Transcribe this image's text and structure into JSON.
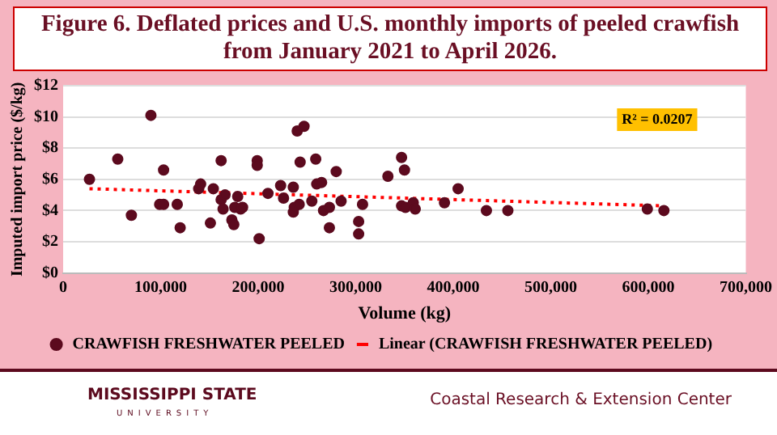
{
  "chart_data": {
    "type": "scatter",
    "title": "Figure 6. Deflated prices and U.S. monthly imports of peeled crawfish from January 2021 to April 2026.",
    "xlabel": "Volume (kg)",
    "ylabel": "Imputed import price ($/kg)",
    "xlim": [
      0,
      700000
    ],
    "ylim": [
      0,
      12
    ],
    "xticks": [
      {
        "value": 0,
        "label": "0"
      },
      {
        "value": 100000,
        "label": "100,000"
      },
      {
        "value": 200000,
        "label": "200,000"
      },
      {
        "value": 300000,
        "label": "300,000"
      },
      {
        "value": 400000,
        "label": "400,000"
      },
      {
        "value": 500000,
        "label": "500,000"
      },
      {
        "value": 600000,
        "label": "600,000"
      },
      {
        "value": 700000,
        "label": "700,000"
      }
    ],
    "yticks": [
      {
        "value": 0,
        "label": "$0"
      },
      {
        "value": 2,
        "label": "$2"
      },
      {
        "value": 4,
        "label": "$4"
      },
      {
        "value": 6,
        "label": "$6"
      },
      {
        "value": 8,
        "label": "$8"
      },
      {
        "value": 10,
        "label": "$10"
      },
      {
        "value": 12,
        "label": "$12"
      }
    ],
    "grid": "y",
    "legend": "bottom",
    "series": [
      {
        "name": "CRAWFISH FRESHWATER PEELED",
        "color": "#5c0a1e",
        "marker": "circle",
        "x": [
          27000,
          56000,
          70000,
          90000,
          99000,
          103000,
          103000,
          117000,
          120000,
          139000,
          141000,
          151000,
          154000,
          162000,
          162000,
          164000,
          166000,
          173000,
          175000,
          176000,
          179000,
          182000,
          184000,
          199000,
          199000,
          201000,
          210000,
          223000,
          226000,
          236000,
          236000,
          237000,
          240000,
          242000,
          243000,
          247000,
          255000,
          259000,
          260000,
          265000,
          267000,
          273000,
          273000,
          280000,
          285000,
          303000,
          303000,
          307000,
          333000,
          347000,
          350000,
          347000,
          351000,
          359000,
          361000,
          391000,
          405000,
          434000,
          456000,
          599000,
          616000
        ],
        "values": [
          6.0,
          7.3,
          3.7,
          10.1,
          4.4,
          4.4,
          6.6,
          4.4,
          2.9,
          5.4,
          5.7,
          3.2,
          5.4,
          4.7,
          7.2,
          4.1,
          5.0,
          3.4,
          3.1,
          4.2,
          4.9,
          4.1,
          4.2,
          7.2,
          6.9,
          2.2,
          5.1,
          5.6,
          4.8,
          5.5,
          3.9,
          4.2,
          9.1,
          4.4,
          7.1,
          9.4,
          4.6,
          7.3,
          5.7,
          5.8,
          4.0,
          4.2,
          2.9,
          6.5,
          4.6,
          3.3,
          2.5,
          4.4,
          6.2,
          7.4,
          6.6,
          4.3,
          4.2,
          4.5,
          4.1,
          4.5,
          5.4,
          4.0,
          4.0,
          4.1,
          4.0
        ]
      },
      {
        "name": "Linear (CRAWFISH FRESHWATER PEELED)",
        "color": "#ff0000",
        "type": "line",
        "line_style": "dotted",
        "x": [
          27000,
          616000
        ],
        "values": [
          5.4,
          4.3
        ]
      }
    ],
    "annotations": [
      "R² = 0.0207",
      "MISSISSIPPI STATE",
      "UNIVERSITY",
      "Coastal Research & Extension Center"
    ]
  }
}
